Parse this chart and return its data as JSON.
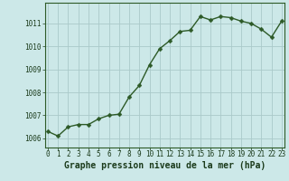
{
  "x": [
    0,
    1,
    2,
    3,
    4,
    5,
    6,
    7,
    8,
    9,
    10,
    11,
    12,
    13,
    14,
    15,
    16,
    17,
    18,
    19,
    20,
    21,
    22,
    23
  ],
  "y": [
    1006.3,
    1006.1,
    1006.5,
    1006.6,
    1006.6,
    1006.85,
    1007.0,
    1007.05,
    1007.8,
    1008.3,
    1009.2,
    1009.9,
    1010.25,
    1010.65,
    1010.7,
    1011.3,
    1011.15,
    1011.3,
    1011.25,
    1011.1,
    1011.0,
    1010.75,
    1010.4,
    1011.1
  ],
  "line_color": "#2d5a27",
  "marker_color": "#2d5a27",
  "bg_color": "#cce8e8",
  "grid_color": "#aacaca",
  "title": "Graphe pression niveau de la mer (hPa)",
  "ylim": [
    1005.6,
    1011.9
  ],
  "yticks": [
    1006,
    1007,
    1008,
    1009,
    1010,
    1011
  ],
  "xticks": [
    0,
    1,
    2,
    3,
    4,
    5,
    6,
    7,
    8,
    9,
    10,
    11,
    12,
    13,
    14,
    15,
    16,
    17,
    18,
    19,
    20,
    21,
    22,
    23
  ],
  "xlabel_color": "#1a3a1a",
  "title_fontsize": 7.0,
  "tick_fontsize": 5.5,
  "line_width": 1.0,
  "marker_size": 2.5
}
